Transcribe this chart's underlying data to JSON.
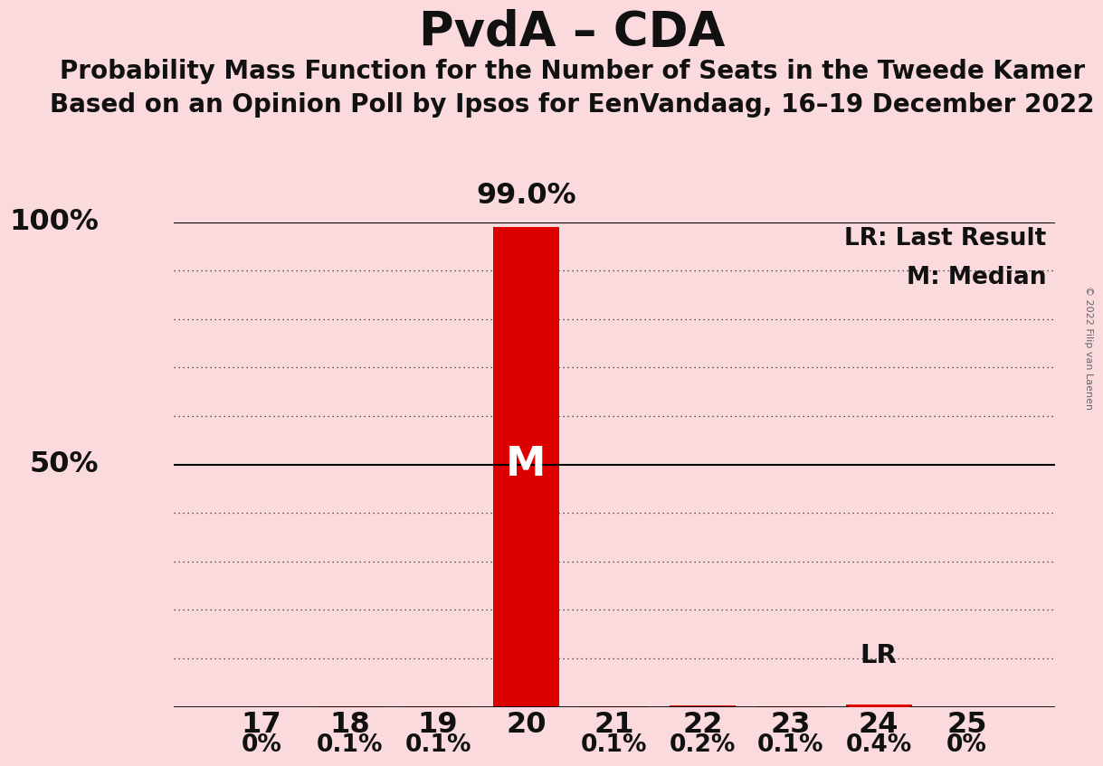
{
  "title": "PvdA – CDA",
  "subtitle1": "Probability Mass Function for the Number of Seats in the Tweede Kamer",
  "subtitle2": "Based on an Opinion Poll by Ipsos for EenVandaag, 16–19 December 2022",
  "copyright": "© 2022 Filip van Laenen",
  "seats": [
    17,
    18,
    19,
    20,
    21,
    22,
    23,
    24,
    25
  ],
  "probabilities": [
    0.0,
    0.001,
    0.001,
    0.99,
    0.001,
    0.002,
    0.001,
    0.004,
    0.0
  ],
  "prob_labels": [
    "0%",
    "0.1%",
    "0.1%",
    "",
    "0.1%",
    "0.2%",
    "0.1%",
    "0.4%",
    "0%"
  ],
  "bar_color": "#DD0000",
  "median_seat": 20,
  "lr_seat": 24,
  "background_color": "#FADADD",
  "ylim": [
    0,
    1.0
  ],
  "annotation_99": "99.0%",
  "legend_lr": "LR: Last Result",
  "legend_m": "M: Median",
  "ylabel_100": "100%",
  "ylabel_50": "50%"
}
